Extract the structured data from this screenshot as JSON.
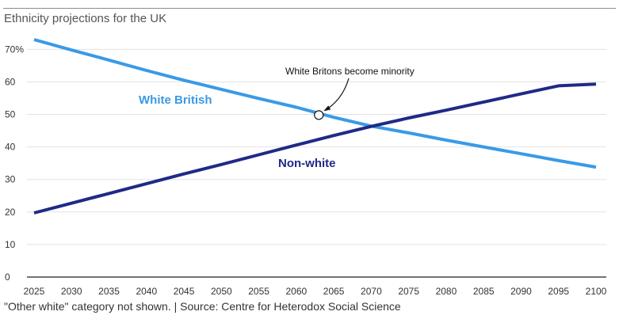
{
  "chart_data": {
    "type": "line",
    "title": "Ethnicity projections for the UK",
    "footer": "\"Other white\" category not shown. | Source: Centre for Heterodox Social Science",
    "xlabel": "",
    "ylabel": "",
    "x": [
      2025,
      2030,
      2035,
      2040,
      2045,
      2050,
      2055,
      2060,
      2065,
      2070,
      2075,
      2080,
      2085,
      2090,
      2095,
      2100
    ],
    "xlim": [
      2025,
      2100
    ],
    "ylim": [
      0,
      73
    ],
    "y_ticks": [
      0,
      10,
      20,
      30,
      40,
      50,
      60,
      70
    ],
    "y_tick_labels": [
      "0",
      "10",
      "20",
      "30",
      "40",
      "50",
      "60",
      "70%"
    ],
    "grid": true,
    "series": [
      {
        "name": "White British",
        "color": "#3a9ae6",
        "values": [
          73.0,
          69.8,
          66.7,
          63.5,
          60.5,
          57.7,
          54.9,
          52.2,
          49.1,
          46.4,
          44.3,
          42.1,
          40.0,
          37.9,
          35.8,
          33.8
        ]
      },
      {
        "name": "Non-white",
        "color": "#1f2a86",
        "values": [
          19.7,
          22.7,
          25.7,
          28.7,
          31.7,
          34.6,
          37.6,
          40.6,
          43.5,
          46.3,
          48.9,
          51.3,
          53.8,
          56.3,
          58.8,
          59.3
        ]
      }
    ],
    "annotations": [
      {
        "text": "White Britons become minority",
        "x": 2063,
        "y": 49.8
      }
    ]
  }
}
